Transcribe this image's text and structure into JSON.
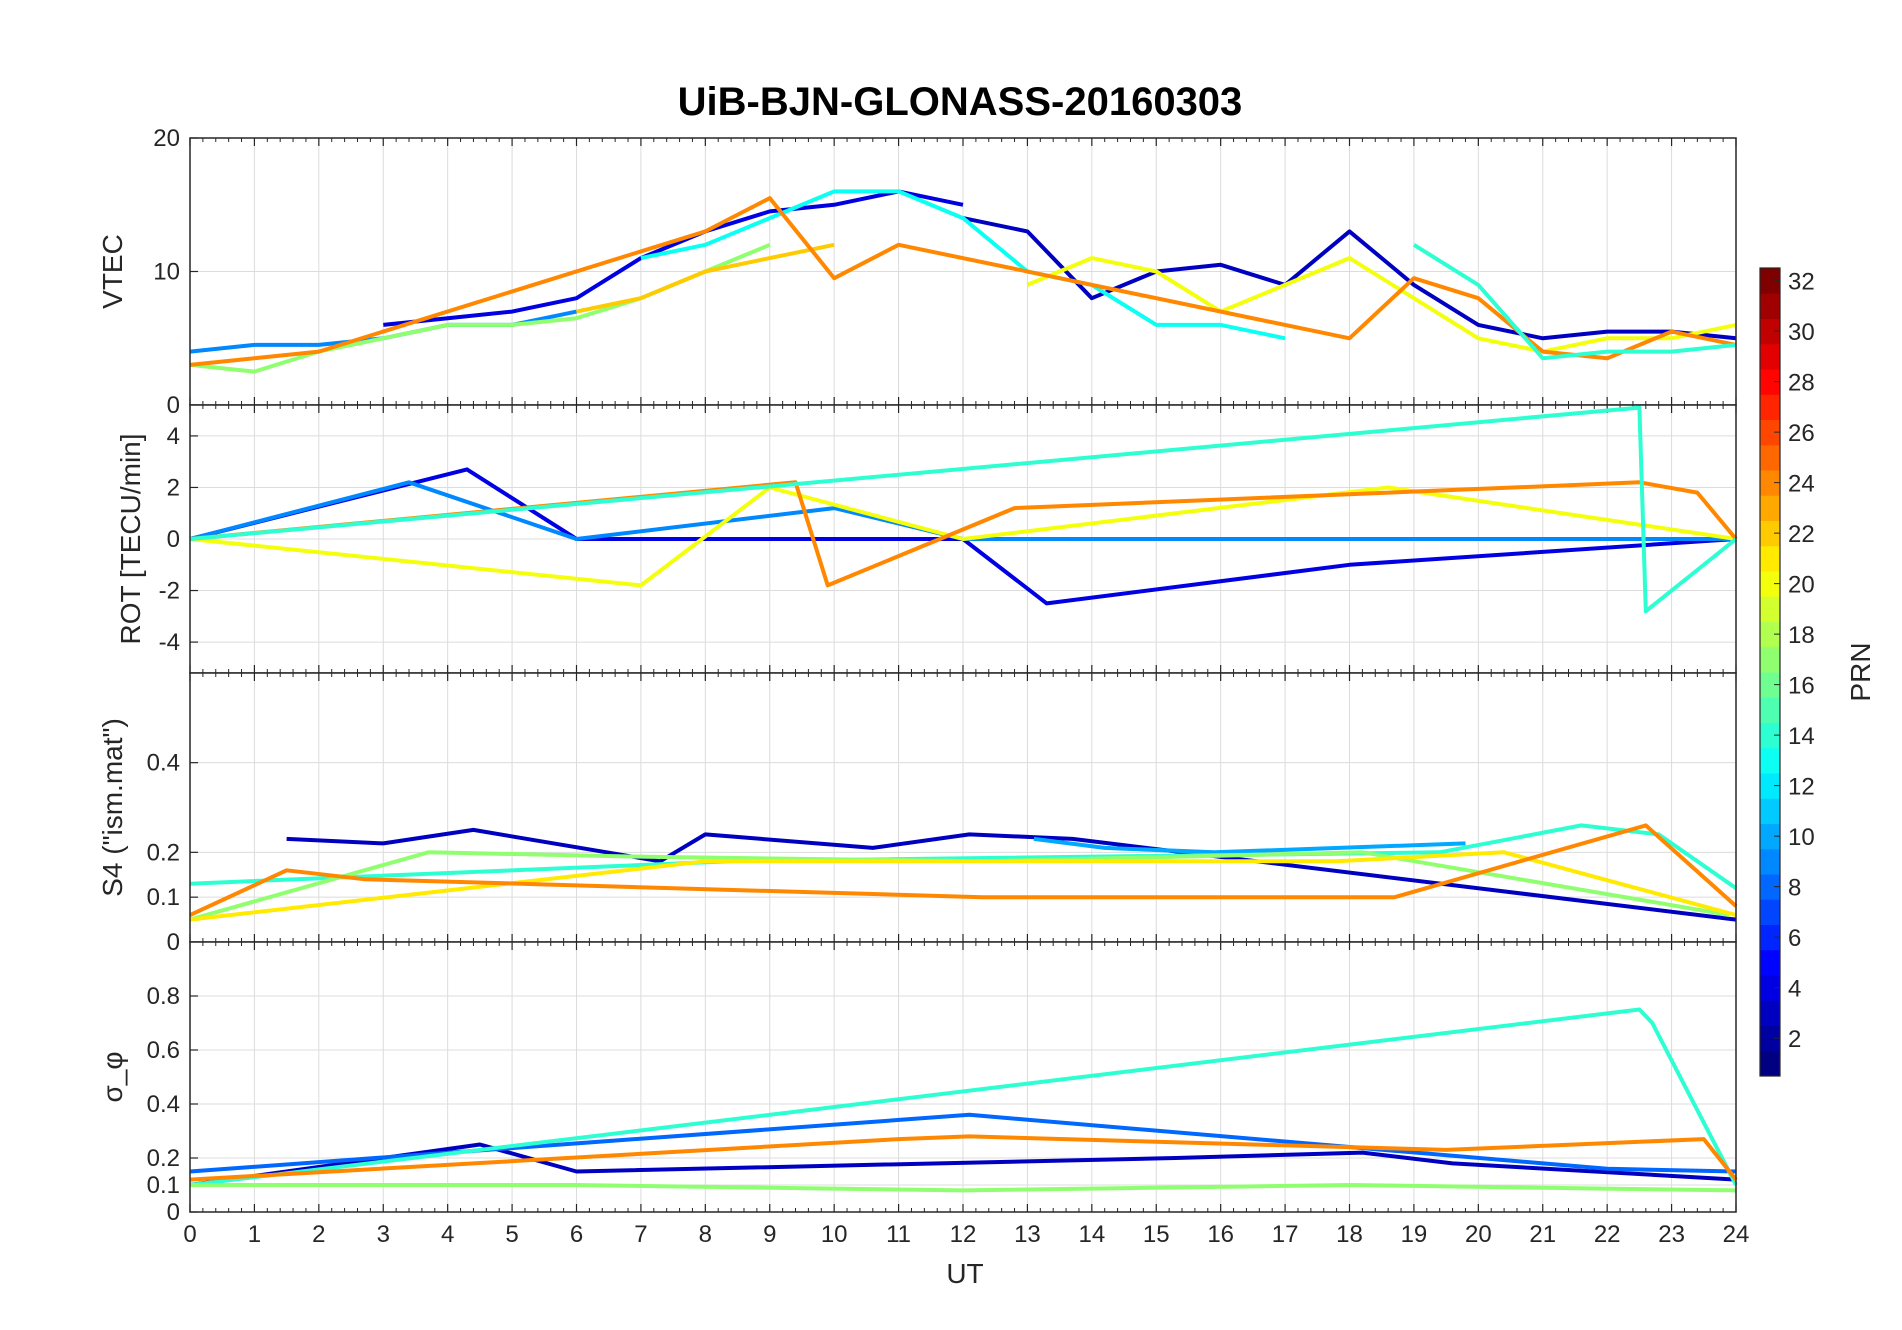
{
  "title": "UiB-BJN-GLONASS-20160303",
  "chart_data": {
    "type": "line",
    "title": "UiB-BJN-GLONASS-20160303",
    "xlabel": "UT",
    "xlim": [
      0,
      24
    ],
    "xticks": [
      "0",
      "1",
      "2",
      "3",
      "4",
      "5",
      "6",
      "7",
      "8",
      "9",
      "10",
      "11",
      "12",
      "13",
      "14",
      "15",
      "16",
      "17",
      "18",
      "19",
      "20",
      "21",
      "22",
      "23",
      "24"
    ],
    "colorbar": {
      "label": "PRN",
      "range": [
        1,
        32
      ],
      "ticks": [
        "2",
        "4",
        "6",
        "8",
        "10",
        "12",
        "14",
        "16",
        "18",
        "20",
        "22",
        "24",
        "26",
        "28",
        "30",
        "32"
      ],
      "colormap": "jet"
    },
    "panels": [
      {
        "id": "vtec",
        "ylabel": "VTEC",
        "ylim": [
          0,
          20
        ],
        "yticks": [
          "0",
          "10",
          "20"
        ],
        "series": [
          {
            "prn": 4,
            "x": [
              3,
              4,
              5,
              6,
              7,
              8,
              9,
              10,
              11,
              12
            ],
            "y": [
              6,
              6.5,
              7,
              8,
              11,
              13,
              14.5,
              15,
              16,
              15
            ]
          },
          {
            "prn": 9,
            "x": [
              0,
              1,
              2,
              3,
              4,
              5,
              6
            ],
            "y": [
              4,
              4.5,
              4.5,
              5,
              6,
              6,
              7
            ]
          },
          {
            "prn": 3,
            "x": [
              12,
              13,
              14,
              15,
              16,
              17,
              18,
              19,
              20,
              21,
              22,
              23,
              24
            ],
            "y": [
              14,
              13,
              8,
              10,
              10.5,
              9,
              13,
              9,
              6,
              5,
              5.5,
              5.5,
              5
            ]
          },
          {
            "prn": 13,
            "x": [
              7,
              8,
              9,
              10,
              11,
              12,
              13,
              14,
              15,
              16,
              17
            ],
            "y": [
              11,
              12,
              14,
              16,
              16,
              14,
              10,
              9,
              6,
              6,
              5
            ]
          },
          {
            "prn": 17,
            "x": [
              0,
              1,
              2,
              3,
              4,
              5,
              6,
              7,
              8,
              9
            ],
            "y": [
              3,
              2.5,
              4,
              5,
              6,
              6,
              6.5,
              8,
              10,
              12
            ]
          },
          {
            "prn": 20,
            "x": [
              13,
              14,
              15,
              16,
              17,
              18,
              19,
              20,
              21,
              22,
              23,
              24
            ],
            "y": [
              9,
              11,
              10,
              7,
              9,
              11,
              8,
              5,
              4,
              5,
              5,
              6
            ]
          },
          {
            "prn": 22,
            "x": [
              6,
              7,
              8,
              9,
              10
            ],
            "y": [
              7,
              8,
              10,
              11,
              12
            ]
          },
          {
            "prn": 24,
            "x": [
              0,
              1,
              2,
              8,
              9,
              10,
              11,
              18,
              19,
              20,
              21,
              22,
              23,
              24
            ],
            "y": [
              3,
              3.5,
              4,
              13,
              15.5,
              9.5,
              12,
              5,
              9.5,
              8,
              4,
              3.5,
              5.5,
              4.5
            ]
          },
          {
            "prn": 14,
            "x": [
              19,
              20,
              21,
              22,
              23,
              24
            ],
            "y": [
              12,
              9,
              3.5,
              4,
              4,
              4.5
            ]
          }
        ]
      },
      {
        "id": "rot",
        "ylabel": "ROT [TECU/min]",
        "ylim": [
          -5.2,
          5.2
        ],
        "yticks": [
          "-4",
          "-2",
          "0",
          "2",
          "4"
        ],
        "series": [
          {
            "prn": 4,
            "x": [
              0,
              4.3,
              6,
              12,
              13.3,
              18,
              24
            ],
            "y": [
              0,
              2.7,
              0,
              0,
              -2.5,
              -1,
              0
            ]
          },
          {
            "prn": 9,
            "x": [
              0,
              3.4,
              6,
              10,
              12,
              18,
              24
            ],
            "y": [
              0,
              2.2,
              0,
              1.2,
              0,
              0,
              0
            ]
          },
          {
            "prn": 20,
            "x": [
              0,
              7,
              9,
              12,
              18.6,
              24
            ],
            "y": [
              0,
              -1.8,
              2,
              0,
              2,
              0
            ]
          },
          {
            "prn": 24,
            "x": [
              0,
              9.4,
              9.9,
              12.8,
              22.5,
              23.4,
              24
            ],
            "y": [
              0,
              2.2,
              -1.8,
              1.2,
              2.2,
              1.8,
              0
            ]
          },
          {
            "prn": 14,
            "x": [
              0,
              22.5,
              22.6,
              24
            ],
            "y": [
              0,
              5.1,
              -2.8,
              0
            ]
          }
        ]
      },
      {
        "id": "s4",
        "ylabel": "S4 (\"ism.mat\")",
        "ylim": [
          0,
          0.6
        ],
        "yticks": [
          "0",
          "0.1",
          "0.2",
          "0.4"
        ],
        "series": [
          {
            "prn": 3,
            "x": [
              1.5,
              3,
              4.4,
              7.3,
              8,
              10.6,
              12.1,
              13.7,
              24
            ],
            "y": [
              0.23,
              0.22,
              0.25,
              0.18,
              0.24,
              0.21,
              0.24,
              0.23,
              0.05
            ]
          },
          {
            "prn": 10,
            "x": [
              13.1,
              14.2,
              15.9,
              19.8
            ],
            "y": [
              0.23,
              0.21,
              0.2,
              0.22
            ]
          },
          {
            "prn": 14,
            "x": [
              0,
              8.4,
              19.4,
              21.6,
              22.8,
              24
            ],
            "y": [
              0.13,
              0.18,
              0.2,
              0.26,
              0.24,
              0.12
            ]
          },
          {
            "prn": 17,
            "x": [
              0,
              3.7,
              7.1,
              12.3,
              18.2,
              23.9
            ],
            "y": [
              0.05,
              0.2,
              0.19,
              0.18,
              0.2,
              0.06
            ]
          },
          {
            "prn": 21,
            "x": [
              0,
              8,
              17.8,
              20.4,
              24
            ],
            "y": [
              0.05,
              0.18,
              0.18,
              0.2,
              0.06
            ]
          },
          {
            "prn": 24,
            "x": [
              0,
              1.5,
              2.7,
              12.3,
              18.7,
              22.6,
              24
            ],
            "y": [
              0.06,
              0.16,
              0.14,
              0.1,
              0.1,
              0.26,
              0.08
            ]
          }
        ]
      },
      {
        "id": "sigma",
        "ylabel": "σ_φ",
        "ylim": [
          0,
          1
        ],
        "yticks": [
          "0",
          "0.1",
          "0.2",
          "0.4",
          "0.6",
          "0.8"
        ],
        "series": [
          {
            "prn": 3,
            "x": [
              0,
              3,
              4.5,
              6,
              15.3,
              18.2,
              19.6,
              24
            ],
            "y": [
              0.1,
              0.2,
              0.25,
              0.15,
              0.2,
              0.22,
              0.18,
              0.12
            ]
          },
          {
            "prn": 8,
            "x": [
              0,
              12.1,
              22,
              24
            ],
            "y": [
              0.15,
              0.36,
              0.16,
              0.15
            ]
          },
          {
            "prn": 14,
            "x": [
              0,
              22.5,
              22.7,
              24
            ],
            "y": [
              0.1,
              0.75,
              0.7,
              0.1
            ]
          },
          {
            "prn": 17,
            "x": [
              0,
              6,
              12,
              18,
              24
            ],
            "y": [
              0.1,
              0.1,
              0.08,
              0.1,
              0.08
            ]
          },
          {
            "prn": 24,
            "x": [
              0,
              11,
              12.1,
              19.5,
              23.5,
              24
            ],
            "y": [
              0.12,
              0.27,
              0.28,
              0.23,
              0.27,
              0.12
            ]
          }
        ]
      }
    ]
  }
}
